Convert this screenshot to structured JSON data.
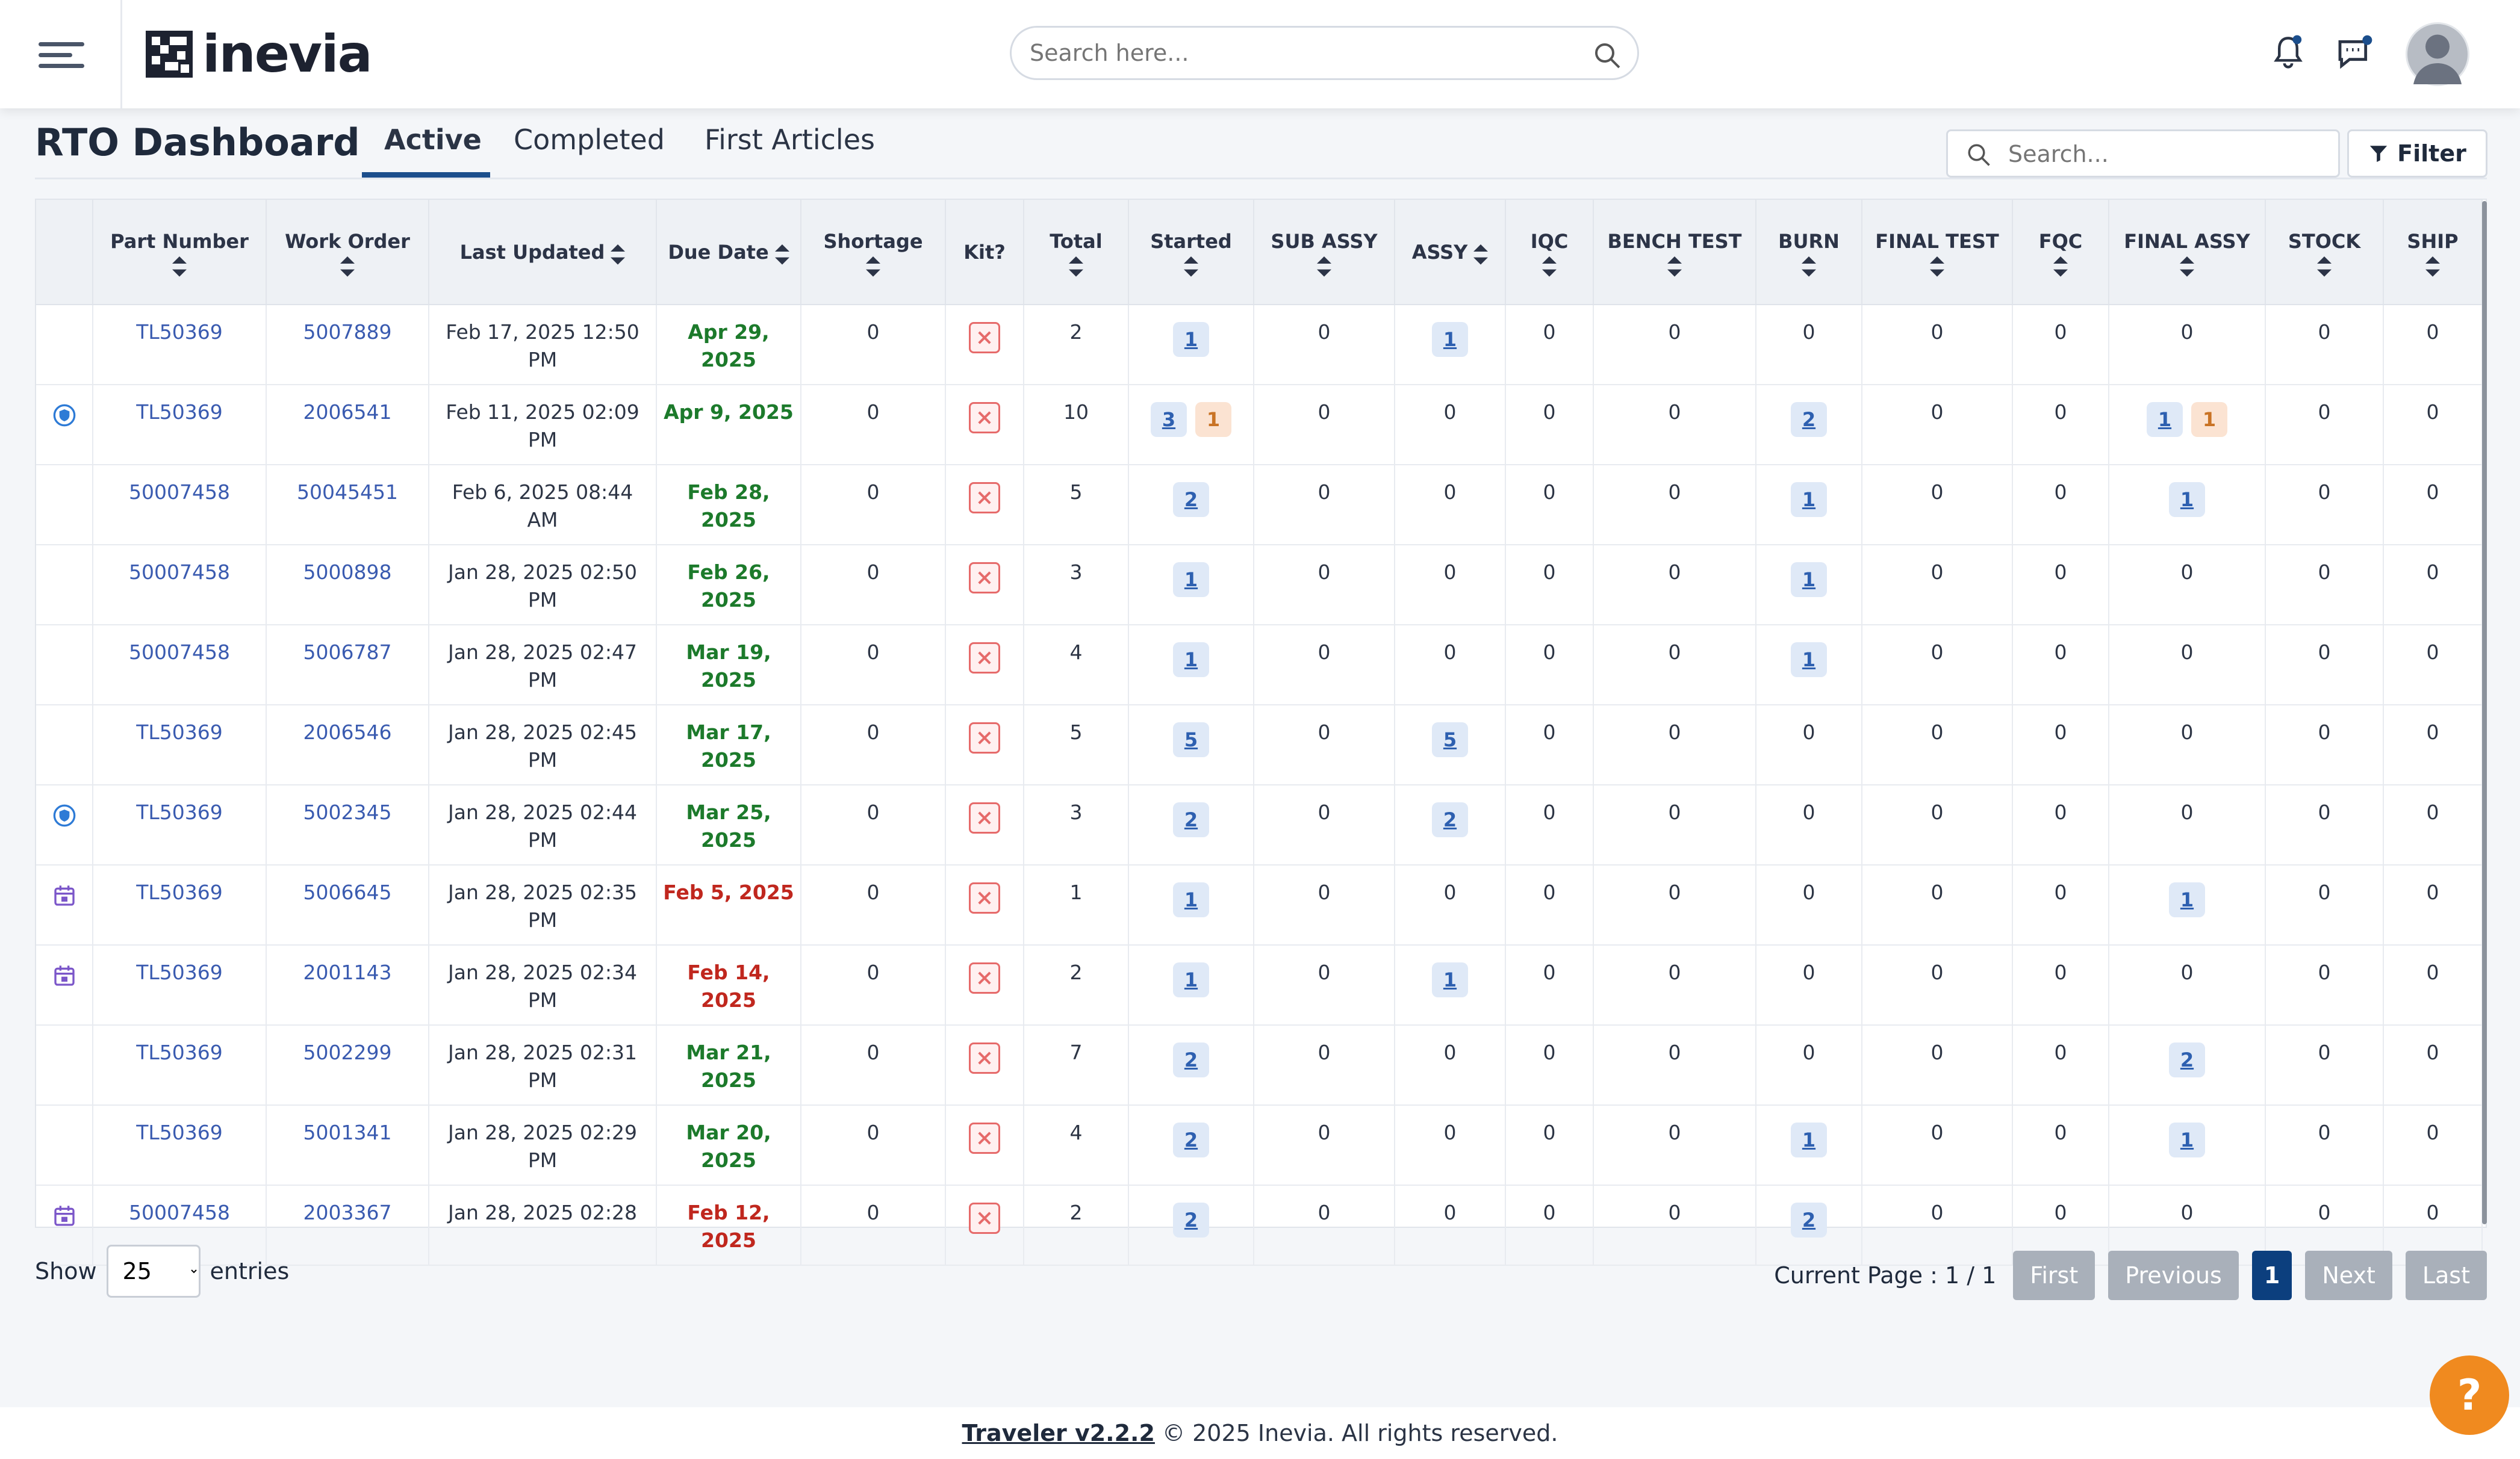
{
  "header": {
    "logo_text": "inevia",
    "search_placeholder": "Search here..."
  },
  "page": {
    "title": "RTO Dashboard",
    "tabs": [
      {
        "label": "Active"
      },
      {
        "label": "Completed"
      },
      {
        "label": "First Articles"
      }
    ],
    "table_search_placeholder": "Search...",
    "filter_label": "Filter"
  },
  "table": {
    "columns": [
      "",
      "Part Number",
      "Work Order",
      "Last Updated",
      "Due Date",
      "Shortage",
      "Kit?",
      "Total",
      "Started",
      "SUB ASSY",
      "ASSY",
      "IQC",
      "BENCH TEST",
      "BURN",
      "FINAL TEST",
      "FQC",
      "FINAL ASSY",
      "STOCK",
      "SHIP"
    ],
    "rows": [
      {
        "icon": "",
        "part": "TL50369",
        "wo": "5007889",
        "updated1": "Feb 17, 2025 12:50",
        "updated2": "PM",
        "due1": "Apr 29,",
        "due2": "2025",
        "due_status": "green",
        "shortage": "0",
        "total": "2",
        "started": "1",
        "started_extra": "",
        "subassy": "0",
        "assy": "1",
        "iqc": "0",
        "bench": "0",
        "burn": "0",
        "finaltest": "0",
        "fqc": "0",
        "finalassy": "0",
        "finalassy_extra": "",
        "stock": "0",
        "ship": "0"
      },
      {
        "icon": "shield",
        "part": "TL50369",
        "wo": "2006541",
        "updated1": "Feb 11, 2025 02:09",
        "updated2": "PM",
        "due1": "Apr 9, 2025",
        "due2": "",
        "due_status": "green",
        "shortage": "0",
        "total": "10",
        "started": "3",
        "started_extra": "1",
        "subassy": "0",
        "assy": "0",
        "iqc": "0",
        "bench": "0",
        "burn": "2",
        "finaltest": "0",
        "fqc": "0",
        "finalassy": "1",
        "finalassy_extra": "1",
        "stock": "0",
        "ship": "0"
      },
      {
        "icon": "",
        "part": "50007458",
        "wo": "50045451",
        "updated1": "Feb 6, 2025 08:44",
        "updated2": "AM",
        "due1": "Feb 28,",
        "due2": "2025",
        "due_status": "green",
        "shortage": "0",
        "total": "5",
        "started": "2",
        "started_extra": "",
        "subassy": "0",
        "assy": "0",
        "iqc": "0",
        "bench": "0",
        "burn": "1",
        "finaltest": "0",
        "fqc": "0",
        "finalassy": "1",
        "finalassy_extra": "",
        "stock": "0",
        "ship": "0"
      },
      {
        "icon": "",
        "part": "50007458",
        "wo": "5000898",
        "updated1": "Jan 28, 2025 02:50",
        "updated2": "PM",
        "due1": "Feb 26,",
        "due2": "2025",
        "due_status": "green",
        "shortage": "0",
        "total": "3",
        "started": "1",
        "started_extra": "",
        "subassy": "0",
        "assy": "0",
        "iqc": "0",
        "bench": "0",
        "burn": "1",
        "finaltest": "0",
        "fqc": "0",
        "finalassy": "0",
        "finalassy_extra": "",
        "stock": "0",
        "ship": "0"
      },
      {
        "icon": "",
        "part": "50007458",
        "wo": "5006787",
        "updated1": "Jan 28, 2025 02:47",
        "updated2": "PM",
        "due1": "Mar 19,",
        "due2": "2025",
        "due_status": "green",
        "shortage": "0",
        "total": "4",
        "started": "1",
        "started_extra": "",
        "subassy": "0",
        "assy": "0",
        "iqc": "0",
        "bench": "0",
        "burn": "1",
        "finaltest": "0",
        "fqc": "0",
        "finalassy": "0",
        "finalassy_extra": "",
        "stock": "0",
        "ship": "0"
      },
      {
        "icon": "",
        "part": "TL50369",
        "wo": "2006546",
        "updated1": "Jan 28, 2025 02:45",
        "updated2": "PM",
        "due1": "Mar 17,",
        "due2": "2025",
        "due_status": "green",
        "shortage": "0",
        "total": "5",
        "started": "5",
        "started_extra": "",
        "subassy": "0",
        "assy": "5",
        "iqc": "0",
        "bench": "0",
        "burn": "0",
        "finaltest": "0",
        "fqc": "0",
        "finalassy": "0",
        "finalassy_extra": "",
        "stock": "0",
        "ship": "0"
      },
      {
        "icon": "shield",
        "part": "TL50369",
        "wo": "5002345",
        "updated1": "Jan 28, 2025 02:44",
        "updated2": "PM",
        "due1": "Mar 25,",
        "due2": "2025",
        "due_status": "green",
        "shortage": "0",
        "total": "3",
        "started": "2",
        "started_extra": "",
        "subassy": "0",
        "assy": "2",
        "iqc": "0",
        "bench": "0",
        "burn": "0",
        "finaltest": "0",
        "fqc": "0",
        "finalassy": "0",
        "finalassy_extra": "",
        "stock": "0",
        "ship": "0"
      },
      {
        "icon": "calendar",
        "part": "TL50369",
        "wo": "5006645",
        "updated1": "Jan 28, 2025 02:35",
        "updated2": "PM",
        "due1": "Feb 5, 2025",
        "due2": "",
        "due_status": "red",
        "shortage": "0",
        "total": "1",
        "started": "1",
        "started_extra": "",
        "subassy": "0",
        "assy": "0",
        "iqc": "0",
        "bench": "0",
        "burn": "0",
        "finaltest": "0",
        "fqc": "0",
        "finalassy": "1",
        "finalassy_extra": "",
        "stock": "0",
        "ship": "0"
      },
      {
        "icon": "calendar",
        "part": "TL50369",
        "wo": "2001143",
        "updated1": "Jan 28, 2025 02:34",
        "updated2": "PM",
        "due1": "Feb 14,",
        "due2": "2025",
        "due_status": "red",
        "shortage": "0",
        "total": "2",
        "started": "1",
        "started_extra": "",
        "subassy": "0",
        "assy": "1",
        "iqc": "0",
        "bench": "0",
        "burn": "0",
        "finaltest": "0",
        "fqc": "0",
        "finalassy": "0",
        "finalassy_extra": "",
        "stock": "0",
        "ship": "0"
      },
      {
        "icon": "",
        "part": "TL50369",
        "wo": "5002299",
        "updated1": "Jan 28, 2025 02:31",
        "updated2": "PM",
        "due1": "Mar 21,",
        "due2": "2025",
        "due_status": "green",
        "shortage": "0",
        "total": "7",
        "started": "2",
        "started_extra": "",
        "subassy": "0",
        "assy": "0",
        "iqc": "0",
        "bench": "0",
        "burn": "0",
        "finaltest": "0",
        "fqc": "0",
        "finalassy": "2",
        "finalassy_extra": "",
        "stock": "0",
        "ship": "0"
      },
      {
        "icon": "",
        "part": "TL50369",
        "wo": "5001341",
        "updated1": "Jan 28, 2025 02:29",
        "updated2": "PM",
        "due1": "Mar 20,",
        "due2": "2025",
        "due_status": "green",
        "shortage": "0",
        "total": "4",
        "started": "2",
        "started_extra": "",
        "subassy": "0",
        "assy": "0",
        "iqc": "0",
        "bench": "0",
        "burn": "1",
        "finaltest": "0",
        "fqc": "0",
        "finalassy": "1",
        "finalassy_extra": "",
        "stock": "0",
        "ship": "0"
      },
      {
        "icon": "calendar",
        "part": "50007458",
        "wo": "2003367",
        "updated1": "Jan 28, 2025 02:28",
        "updated2": "",
        "due1": "Feb 12, 2025",
        "due2": "",
        "due_status": "red",
        "shortage": "0",
        "total": "2",
        "started": "2",
        "started_extra": "",
        "subassy": "0",
        "assy": "0",
        "iqc": "0",
        "bench": "0",
        "burn": "2",
        "finaltest": "0",
        "fqc": "0",
        "finalassy": "0",
        "finalassy_extra": "",
        "stock": "0",
        "ship": "0"
      }
    ]
  },
  "footer_controls": {
    "show_label": "Show",
    "entries_value": "25",
    "entries_label": "entries",
    "current_page_label": "Current Page : 1 / 1",
    "pager": [
      "First",
      "Previous",
      "1",
      "Next",
      "Last"
    ]
  },
  "footer": {
    "version_link": "Traveler v2.2.2",
    "copyright": "© 2025 Inevia. All rights reserved."
  },
  "help_label": "?",
  "colors": {
    "accent": "#1b4e8c",
    "link": "#3a5bb0",
    "due_ok": "#1c7a2b",
    "due_late": "#c0271e",
    "help": "#f08a1f"
  }
}
